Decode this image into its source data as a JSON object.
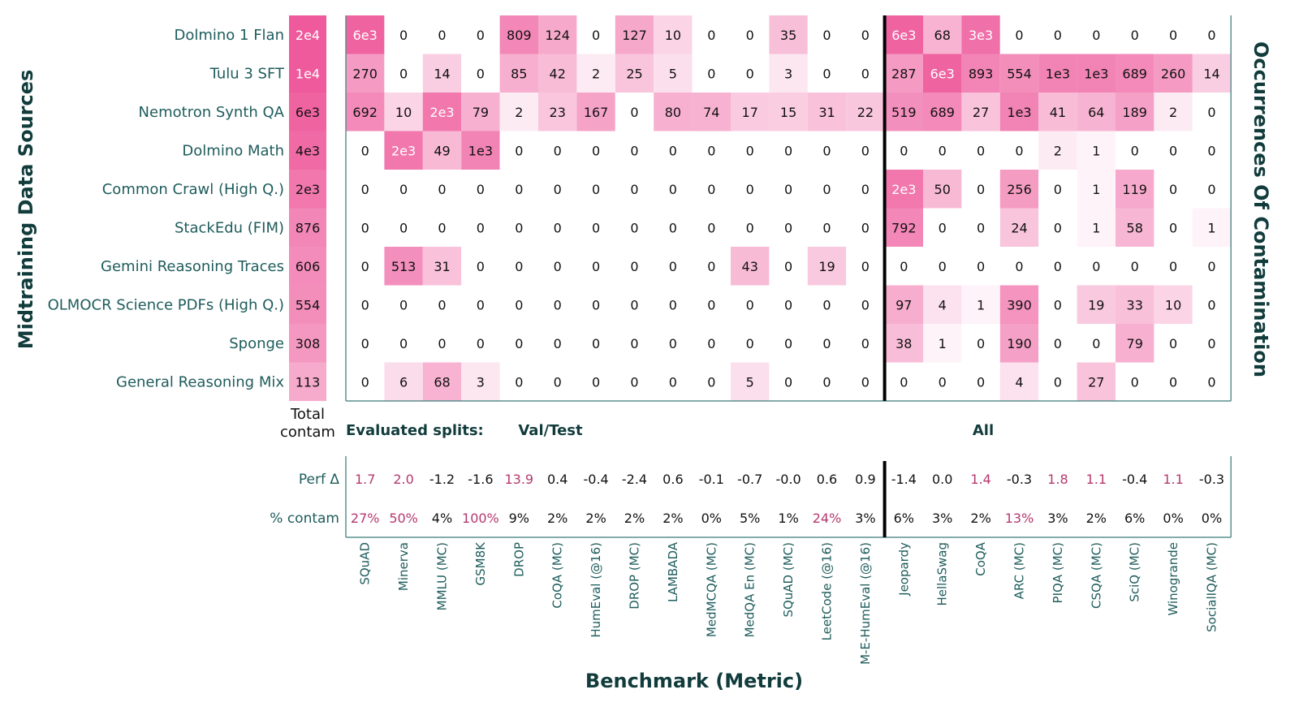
{
  "chart_data": {
    "type": "heatmap",
    "ylabel": "Midtraining Data Sources",
    "xlabel": "Benchmark (Metric)",
    "colorbar_label": "Occurrences Of Contamination",
    "total_header": [
      "Total",
      "contam"
    ],
    "splits": {
      "prefix": "Evaluated splits:",
      "left": "Val/Test",
      "right": "All"
    },
    "split_after_index": 13,
    "rows": [
      "Dolmino 1 Flan",
      "Tulu 3 SFT",
      "Nemotron Synth QA",
      "Dolmino Math",
      "Common Crawl (High Q.)",
      "StackEdu (FIM)",
      "Gemini Reasoning Traces",
      "OLMOCR Science PDFs (High Q.)",
      "Sponge",
      "General Reasoning Mix"
    ],
    "totals": [
      "2e4",
      "1e4",
      "6e3",
      "4e3",
      "2e3",
      "876",
      "606",
      "554",
      "308",
      "113"
    ],
    "total_values": [
      20000,
      10000,
      6000,
      4000,
      2000,
      876,
      606,
      554,
      308,
      113
    ],
    "columns": [
      "SQuAD",
      "Minerva",
      "MMLU (MC)",
      "GSM8K",
      "DROP",
      "CoQA (MC)",
      "HumEval (@16)",
      "DROP (MC)",
      "LAMBADA",
      "MedMCQA (MC)",
      "MedQA En (MC)",
      "SQuAD (MC)",
      "LeetCode (@16)",
      "M-E-HumEval (@16)",
      "Jeopardy",
      "HellaSwag",
      "CoQA",
      "ARC (MC)",
      "PIQA (MC)",
      "CSQA (MC)",
      "SciQ (MC)",
      "Winogrande",
      "SocialIQA (MC)"
    ],
    "cells": [
      [
        "6e3",
        "0",
        "0",
        "0",
        "809",
        "124",
        "0",
        "127",
        "10",
        "0",
        "0",
        "35",
        "0",
        "0",
        "6e3",
        "68",
        "3e3",
        "0",
        "0",
        "0",
        "0",
        "0",
        "0"
      ],
      [
        "270",
        "0",
        "14",
        "0",
        "85",
        "42",
        "2",
        "25",
        "5",
        "0",
        "0",
        "3",
        "0",
        "0",
        "287",
        "6e3",
        "893",
        "554",
        "1e3",
        "1e3",
        "689",
        "260",
        "14"
      ],
      [
        "692",
        "10",
        "2e3",
        "79",
        "2",
        "23",
        "167",
        "0",
        "80",
        "74",
        "17",
        "15",
        "31",
        "22",
        "519",
        "689",
        "27",
        "1e3",
        "41",
        "64",
        "189",
        "2",
        "0"
      ],
      [
        "0",
        "2e3",
        "49",
        "1e3",
        "0",
        "0",
        "0",
        "0",
        "0",
        "0",
        "0",
        "0",
        "0",
        "0",
        "0",
        "0",
        "0",
        "0",
        "2",
        "1",
        "0",
        "0",
        "0"
      ],
      [
        "0",
        "0",
        "0",
        "0",
        "0",
        "0",
        "0",
        "0",
        "0",
        "0",
        "0",
        "0",
        "0",
        "0",
        "2e3",
        "50",
        "0",
        "256",
        "0",
        "1",
        "119",
        "0",
        "0"
      ],
      [
        "0",
        "0",
        "0",
        "0",
        "0",
        "0",
        "0",
        "0",
        "0",
        "0",
        "0",
        "0",
        "0",
        "0",
        "792",
        "0",
        "0",
        "24",
        "0",
        "1",
        "58",
        "0",
        "1"
      ],
      [
        "0",
        "513",
        "31",
        "0",
        "0",
        "0",
        "0",
        "0",
        "0",
        "0",
        "43",
        "0",
        "19",
        "0",
        "0",
        "0",
        "0",
        "0",
        "0",
        "0",
        "0",
        "0",
        "0"
      ],
      [
        "0",
        "0",
        "0",
        "0",
        "0",
        "0",
        "0",
        "0",
        "0",
        "0",
        "0",
        "0",
        "0",
        "0",
        "97",
        "4",
        "1",
        "390",
        "0",
        "19",
        "33",
        "10",
        "0"
      ],
      [
        "0",
        "0",
        "0",
        "0",
        "0",
        "0",
        "0",
        "0",
        "0",
        "0",
        "0",
        "0",
        "0",
        "0",
        "38",
        "1",
        "0",
        "190",
        "0",
        "0",
        "79",
        "0",
        "0"
      ],
      [
        "0",
        "6",
        "68",
        "3",
        "0",
        "0",
        "0",
        "0",
        "0",
        "0",
        "5",
        "0",
        "0",
        "0",
        "0",
        "0",
        "0",
        "4",
        "0",
        "27",
        "0",
        "0",
        "0"
      ]
    ],
    "values": [
      [
        6000,
        0,
        0,
        0,
        809,
        124,
        0,
        127,
        10,
        0,
        0,
        35,
        0,
        0,
        6000,
        68,
        3000,
        0,
        0,
        0,
        0,
        0,
        0
      ],
      [
        270,
        0,
        14,
        0,
        85,
        42,
        2,
        25,
        5,
        0,
        0,
        3,
        0,
        0,
        287,
        6000,
        893,
        554,
        1000,
        1000,
        689,
        260,
        14
      ],
      [
        692,
        10,
        2000,
        79,
        2,
        23,
        167,
        0,
        80,
        74,
        17,
        15,
        31,
        22,
        519,
        689,
        27,
        1000,
        41,
        64,
        189,
        2,
        0
      ],
      [
        0,
        2000,
        49,
        1000,
        0,
        0,
        0,
        0,
        0,
        0,
        0,
        0,
        0,
        0,
        0,
        0,
        0,
        0,
        2,
        1,
        0,
        0,
        0
      ],
      [
        0,
        0,
        0,
        0,
        0,
        0,
        0,
        0,
        0,
        0,
        0,
        0,
        0,
        0,
        2000,
        50,
        0,
        256,
        0,
        1,
        119,
        0,
        0
      ],
      [
        0,
        0,
        0,
        0,
        0,
        0,
        0,
        0,
        0,
        0,
        0,
        0,
        0,
        0,
        792,
        0,
        0,
        24,
        0,
        1,
        58,
        0,
        1
      ],
      [
        0,
        513,
        31,
        0,
        0,
        0,
        0,
        0,
        0,
        0,
        43,
        0,
        19,
        0,
        0,
        0,
        0,
        0,
        0,
        0,
        0,
        0,
        0
      ],
      [
        0,
        0,
        0,
        0,
        0,
        0,
        0,
        0,
        0,
        0,
        0,
        0,
        0,
        0,
        97,
        4,
        1,
        390,
        0,
        19,
        33,
        10,
        0
      ],
      [
        0,
        0,
        0,
        0,
        0,
        0,
        0,
        0,
        0,
        0,
        0,
        0,
        0,
        0,
        38,
        1,
        0,
        190,
        0,
        0,
        79,
        0,
        0
      ],
      [
        0,
        6,
        68,
        3,
        0,
        0,
        0,
        0,
        0,
        0,
        5,
        0,
        0,
        0,
        0,
        0,
        0,
        4,
        0,
        27,
        0,
        0,
        0
      ]
    ],
    "perf_delta_label": "Perf Δ",
    "perf_delta": [
      "1.7",
      "2.0",
      "-1.2",
      "-1.6",
      "13.9",
      "0.4",
      "-0.4",
      "-2.4",
      "0.6",
      "-0.1",
      "-0.7",
      "-0.0",
      "0.6",
      "0.9",
      "-1.4",
      "0.0",
      "1.4",
      "-0.3",
      "1.8",
      "1.1",
      "-0.4",
      "1.1",
      "-0.3"
    ],
    "perf_delta_highlight": [
      true,
      true,
      false,
      false,
      true,
      false,
      false,
      false,
      false,
      false,
      false,
      false,
      false,
      false,
      false,
      false,
      true,
      false,
      true,
      true,
      false,
      true,
      false
    ],
    "pct_contam_label": "% contam",
    "pct_contam": [
      "27%",
      "50%",
      "4%",
      "100%",
      "9%",
      "2%",
      "2%",
      "2%",
      "2%",
      "0%",
      "5%",
      "1%",
      "24%",
      "3%",
      "6%",
      "3%",
      "2%",
      "13%",
      "3%",
      "2%",
      "6%",
      "0%",
      "0%"
    ],
    "pct_contam_highlight": [
      true,
      true,
      false,
      true,
      false,
      false,
      false,
      false,
      false,
      false,
      false,
      false,
      true,
      false,
      false,
      false,
      false,
      true,
      false,
      false,
      false,
      false,
      false
    ],
    "colors": {
      "low": "#ffffff",
      "high": "#ee5a9c",
      "highlight_text": "#b5386d",
      "label_text": "#1f5c5c",
      "title_text": "#123c3c"
    }
  }
}
